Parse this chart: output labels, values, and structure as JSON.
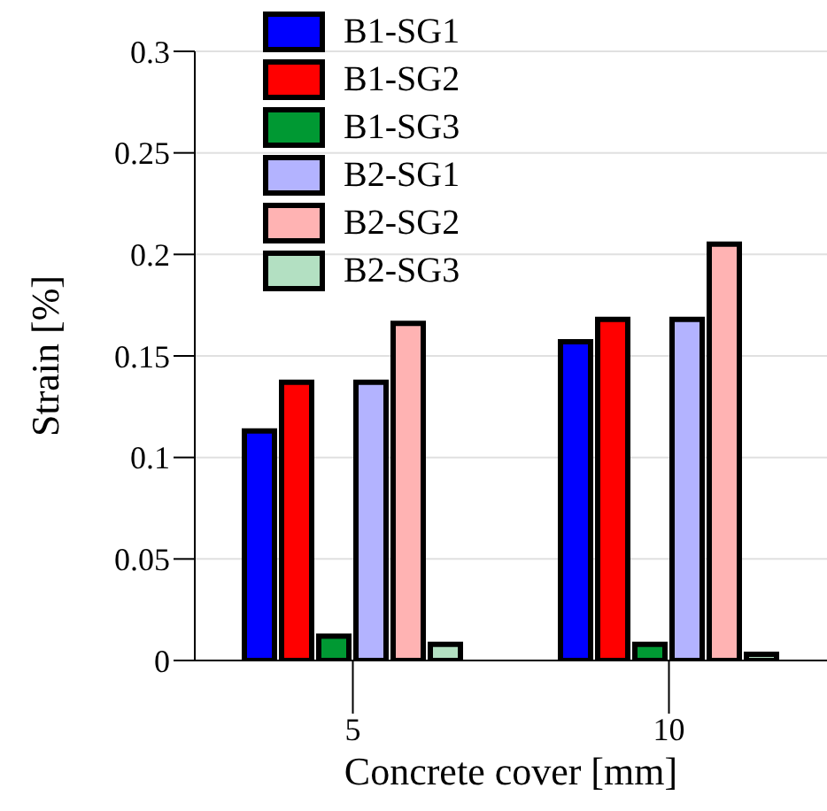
{
  "chart_data": {
    "type": "bar",
    "xlabel": "Concrete cover [mm]",
    "ylabel": "Strain [%]",
    "categories": [
      "5",
      "10"
    ],
    "series": [
      {
        "name": "B1-SG1",
        "color": "#0000ff",
        "values": [
          0.113,
          0.157
        ]
      },
      {
        "name": "B1-SG2",
        "color": "#ff0000",
        "values": [
          0.137,
          0.168
        ]
      },
      {
        "name": "B1-SG3",
        "color": "#009933",
        "values": [
          0.012,
          0.008
        ]
      },
      {
        "name": "B2-SG1",
        "color": "#b3b3ff",
        "values": [
          0.137,
          0.168
        ]
      },
      {
        "name": "B2-SG2",
        "color": "#ffb3b3",
        "values": [
          0.166,
          0.205
        ]
      },
      {
        "name": "B2-SG3",
        "color": "#b3e0c2",
        "values": [
          0.008,
          0.003
        ]
      }
    ],
    "ylim": [
      0,
      0.3
    ],
    "yticks": [
      0,
      0.05,
      0.1,
      0.15,
      0.2,
      0.25,
      0.3
    ],
    "grid": "y",
    "legend": "top left"
  }
}
